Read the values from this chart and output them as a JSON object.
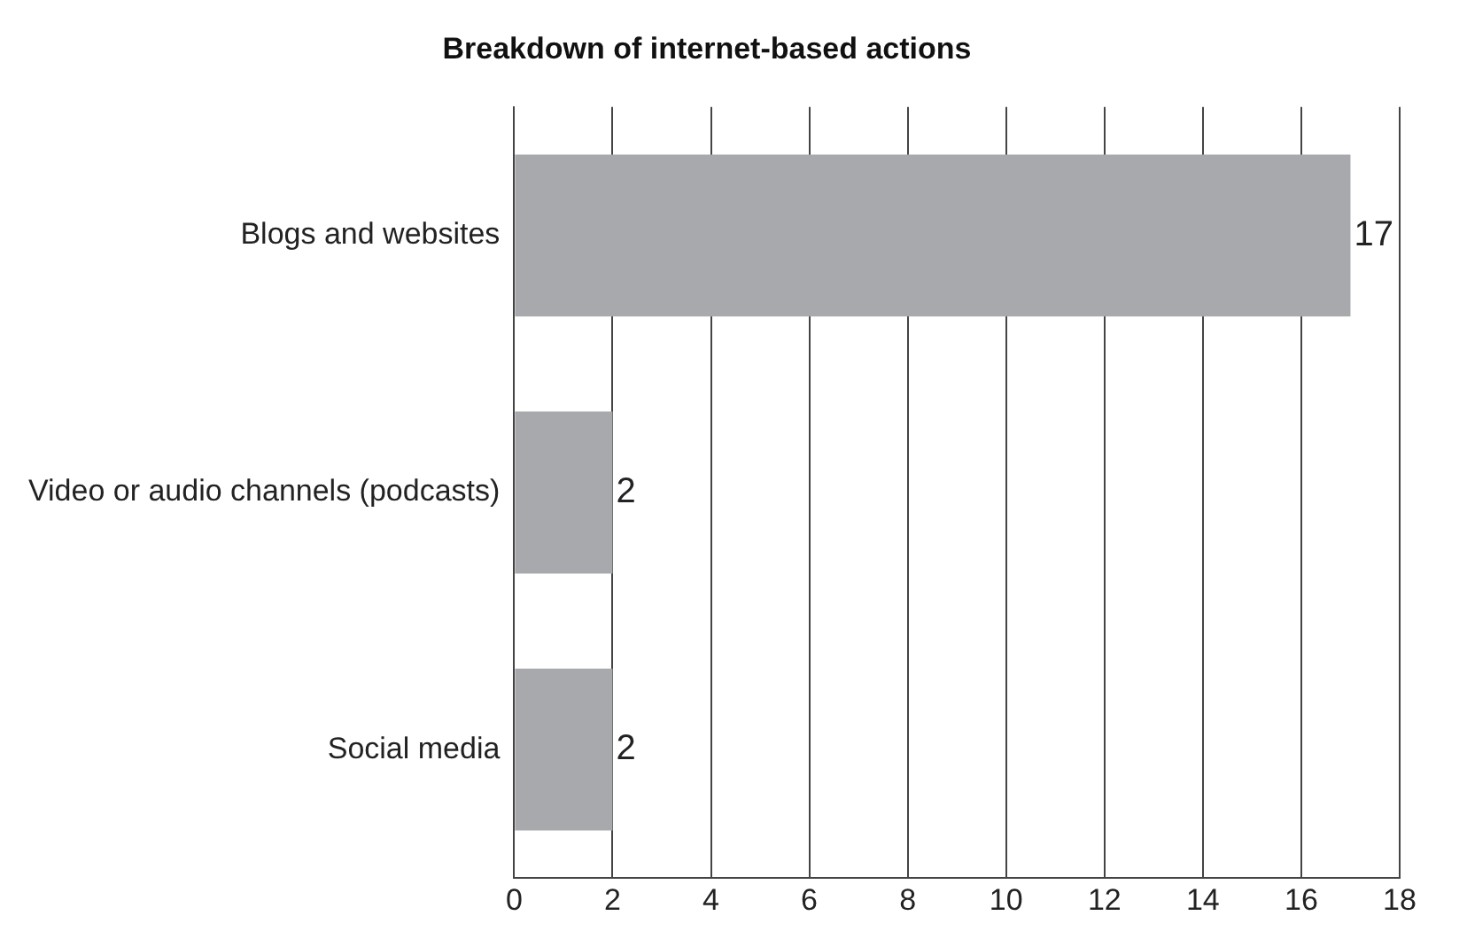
{
  "chart_data": {
    "type": "bar",
    "orientation": "horizontal",
    "title": "Breakdown of internet-based actions",
    "categories": [
      "Blogs and websites",
      "Video or audio channels (podcasts)",
      "Social media"
    ],
    "values": [
      17,
      2,
      2
    ],
    "color": "#a7a9ac",
    "xlim": [
      0,
      18
    ],
    "xticks": [
      0,
      2,
      4,
      6,
      8,
      10,
      12,
      14,
      16,
      18
    ],
    "grid": "x",
    "data_labels": true,
    "legend": false
  }
}
